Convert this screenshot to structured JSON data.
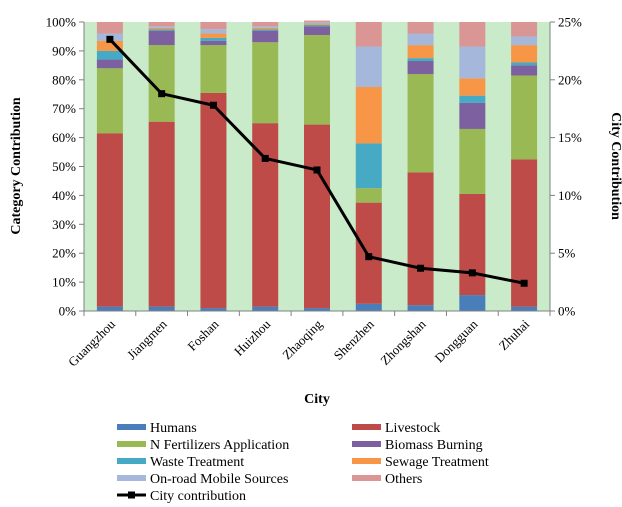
{
  "chart_data": {
    "type": "bar",
    "stacked": true,
    "percent_stacked": true,
    "xlabel": "City",
    "ylabel": "Category Contribution",
    "y2label": "City Contribution",
    "ylim": [
      0,
      100
    ],
    "y2lim": [
      0,
      25
    ],
    "y_ticks": [
      "0%",
      "10%",
      "20%",
      "30%",
      "40%",
      "50%",
      "60%",
      "70%",
      "80%",
      "90%",
      "100%"
    ],
    "y2_ticks": [
      "0%",
      "5%",
      "10%",
      "15%",
      "20%",
      "25%"
    ],
    "plot_background": "#c9ebc9",
    "grid": false,
    "categories": [
      "Guangzhou",
      "Jiangmen",
      "Foshan",
      "Huizhou",
      "Zhaoqing",
      "Shenzhen",
      "Zhongshan",
      "Dongguan",
      "Zhuhai"
    ],
    "series": [
      {
        "name": "Humans",
        "color": "#4a7ebb",
        "values": [
          1.5,
          1.5,
          1,
          1.5,
          1,
          2.5,
          2,
          5.5,
          1.5
        ]
      },
      {
        "name": "Livestock",
        "color": "#be4b48",
        "values": [
          60,
          64,
          74.5,
          63.5,
          63.5,
          35,
          46,
          35,
          51
        ]
      },
      {
        "name": "N Fertilizers Application",
        "color": "#98b954",
        "values": [
          22.5,
          26.5,
          16.5,
          28,
          31,
          5,
          34,
          22.5,
          29
        ]
      },
      {
        "name": "Biomass Burning",
        "color": "#7d60a0",
        "values": [
          3,
          5,
          1.5,
          4,
          3,
          0,
          4.5,
          9,
          3.5
        ]
      },
      {
        "name": "Waste Treatment",
        "color": "#46aac5",
        "values": [
          3,
          0.5,
          1,
          0.5,
          0.5,
          15.5,
          1,
          2.5,
          1
        ]
      },
      {
        "name": "Sewage Treatment",
        "color": "#f79646",
        "values": [
          3.5,
          0.5,
          1.5,
          0.5,
          0.5,
          19.5,
          4.5,
          6,
          6
        ]
      },
      {
        "name": "On-road Mobile Sources",
        "color": "#a5b7da",
        "values": [
          2.5,
          0.5,
          1.5,
          0.5,
          0.5,
          14,
          4,
          11,
          3
        ]
      },
      {
        "name": "Others",
        "color": "#d99694",
        "values": [
          4,
          1.5,
          2.5,
          1.5,
          0.5,
          8.5,
          4,
          8.5,
          5
        ]
      }
    ],
    "line_series": {
      "name": "City contribution",
      "color": "#000000",
      "axis": "secondary",
      "values": [
        23.5,
        18.8,
        17.8,
        13.2,
        12.2,
        4.7,
        3.7,
        3.3,
        2.4
      ]
    }
  }
}
